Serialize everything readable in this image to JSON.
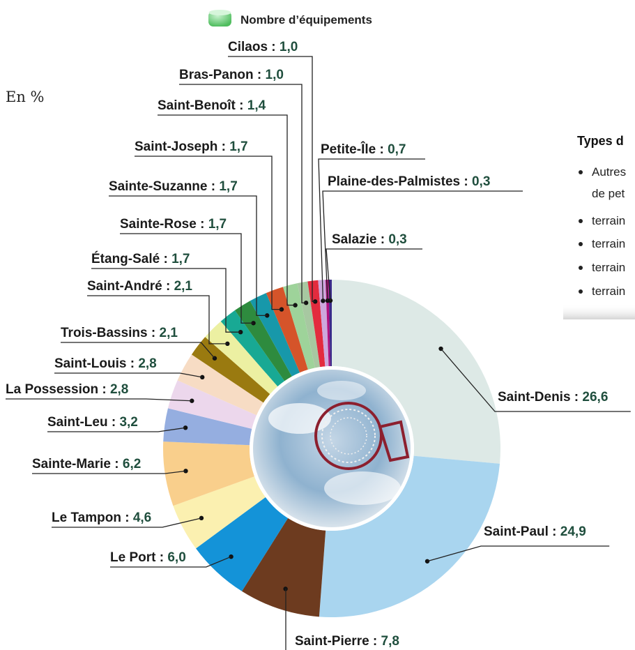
{
  "unit_label": "En %",
  "legend": {
    "label": "Nombre d’équipements",
    "swatch_color": "#7fd88a"
  },
  "side_panel": {
    "title": "Types d",
    "items": [
      "Autres",
      "de pet",
      "terrain",
      "terrain",
      "terrain",
      "terrain"
    ]
  },
  "chart_data": {
    "type": "pie",
    "title": "",
    "unit": "%",
    "decimal_separator": ",",
    "label_separator": " : ",
    "slices": [
      {
        "label": "Saint-Denis",
        "value": 26.6,
        "value_text": "26,6",
        "color": "#dde9e6"
      },
      {
        "label": "Saint-Paul",
        "value": 24.9,
        "value_text": "24,9",
        "color": "#a9d5ef"
      },
      {
        "label": "Saint-Pierre",
        "value": 7.8,
        "value_text": "7,8",
        "color": "#6d3b1f"
      },
      {
        "label": "Le Port",
        "value": 6.0,
        "value_text": "6,0",
        "color": "#1493d8"
      },
      {
        "label": "Le Tampon",
        "value": 4.6,
        "value_text": "4,6",
        "color": "#fbf0b0"
      },
      {
        "label": "Sainte-Marie",
        "value": 6.2,
        "value_text": "6,2",
        "color": "#f9cf8c"
      },
      {
        "label": "Saint-Leu",
        "value": 3.2,
        "value_text": "3,2",
        "color": "#95aee0"
      },
      {
        "label": "La Possession",
        "value": 2.8,
        "value_text": "2,8",
        "color": "#ecd7ec"
      },
      {
        "label": "Saint-Louis",
        "value": 2.8,
        "value_text": "2,8",
        "color": "#f7dcc4"
      },
      {
        "label": "Trois-Bassins",
        "value": 2.1,
        "value_text": "2,1",
        "color": "#9a7a10"
      },
      {
        "label": "Saint-André",
        "value": 2.1,
        "value_text": "2,1",
        "color": "#ecf0a2"
      },
      {
        "label": "Étang-Salé",
        "value": 1.7,
        "value_text": "1,7",
        "color": "#18a994"
      },
      {
        "label": "Sainte-Rose",
        "value": 1.7,
        "value_text": "1,7",
        "color": "#2e8b3e"
      },
      {
        "label": "Sainte-Suzanne",
        "value": 1.7,
        "value_text": "1,7",
        "color": "#1798aa"
      },
      {
        "label": "Saint-Joseph",
        "value": 1.7,
        "value_text": "1,7",
        "color": "#d5542a"
      },
      {
        "label": "Saint-Benoît",
        "value": 1.4,
        "value_text": "1,4",
        "color": "#9ed39a"
      },
      {
        "label": "Bras-Panon",
        "value": 1.0,
        "value_text": "1,0",
        "color": "#a7c8a1"
      },
      {
        "label": "Cilaos",
        "value": 1.0,
        "value_text": "1,0",
        "color": "#e32b3e"
      },
      {
        "label": "Petite-Île",
        "value": 0.7,
        "value_text": "0,7",
        "color": "#cda8dc"
      },
      {
        "label": "Plaine-des-Palmistes",
        "value": 0.3,
        "value_text": "0,3",
        "color": "#b0127e"
      },
      {
        "label": "Salazie",
        "value": 0.3,
        "value_text": "0,3",
        "color": "#3a2a8a"
      }
    ]
  }
}
